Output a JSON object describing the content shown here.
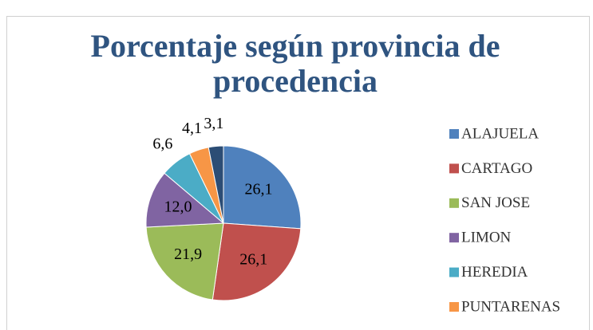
{
  "chart_data": {
    "type": "pie",
    "title": "Porcentaje según provincia de procedencia",
    "categories": [
      "ALAJUELA",
      "CARTAGO",
      "SAN JOSE",
      "LIMON",
      "HEREDIA",
      "PUNTARENAS",
      null
    ],
    "values": [
      26.1,
      26.1,
      21.9,
      12.0,
      6.6,
      4.1,
      3.1
    ],
    "value_labels": [
      "26,1",
      "26,1",
      "21,9",
      "12,0",
      "6,6",
      "4,1",
      "3,1"
    ],
    "colors": [
      "#4f81bd",
      "#c0504d",
      "#9bbb59",
      "#8064a2",
      "#4bacc6",
      "#f79646",
      "#2c4d75"
    ],
    "legend": "right"
  }
}
